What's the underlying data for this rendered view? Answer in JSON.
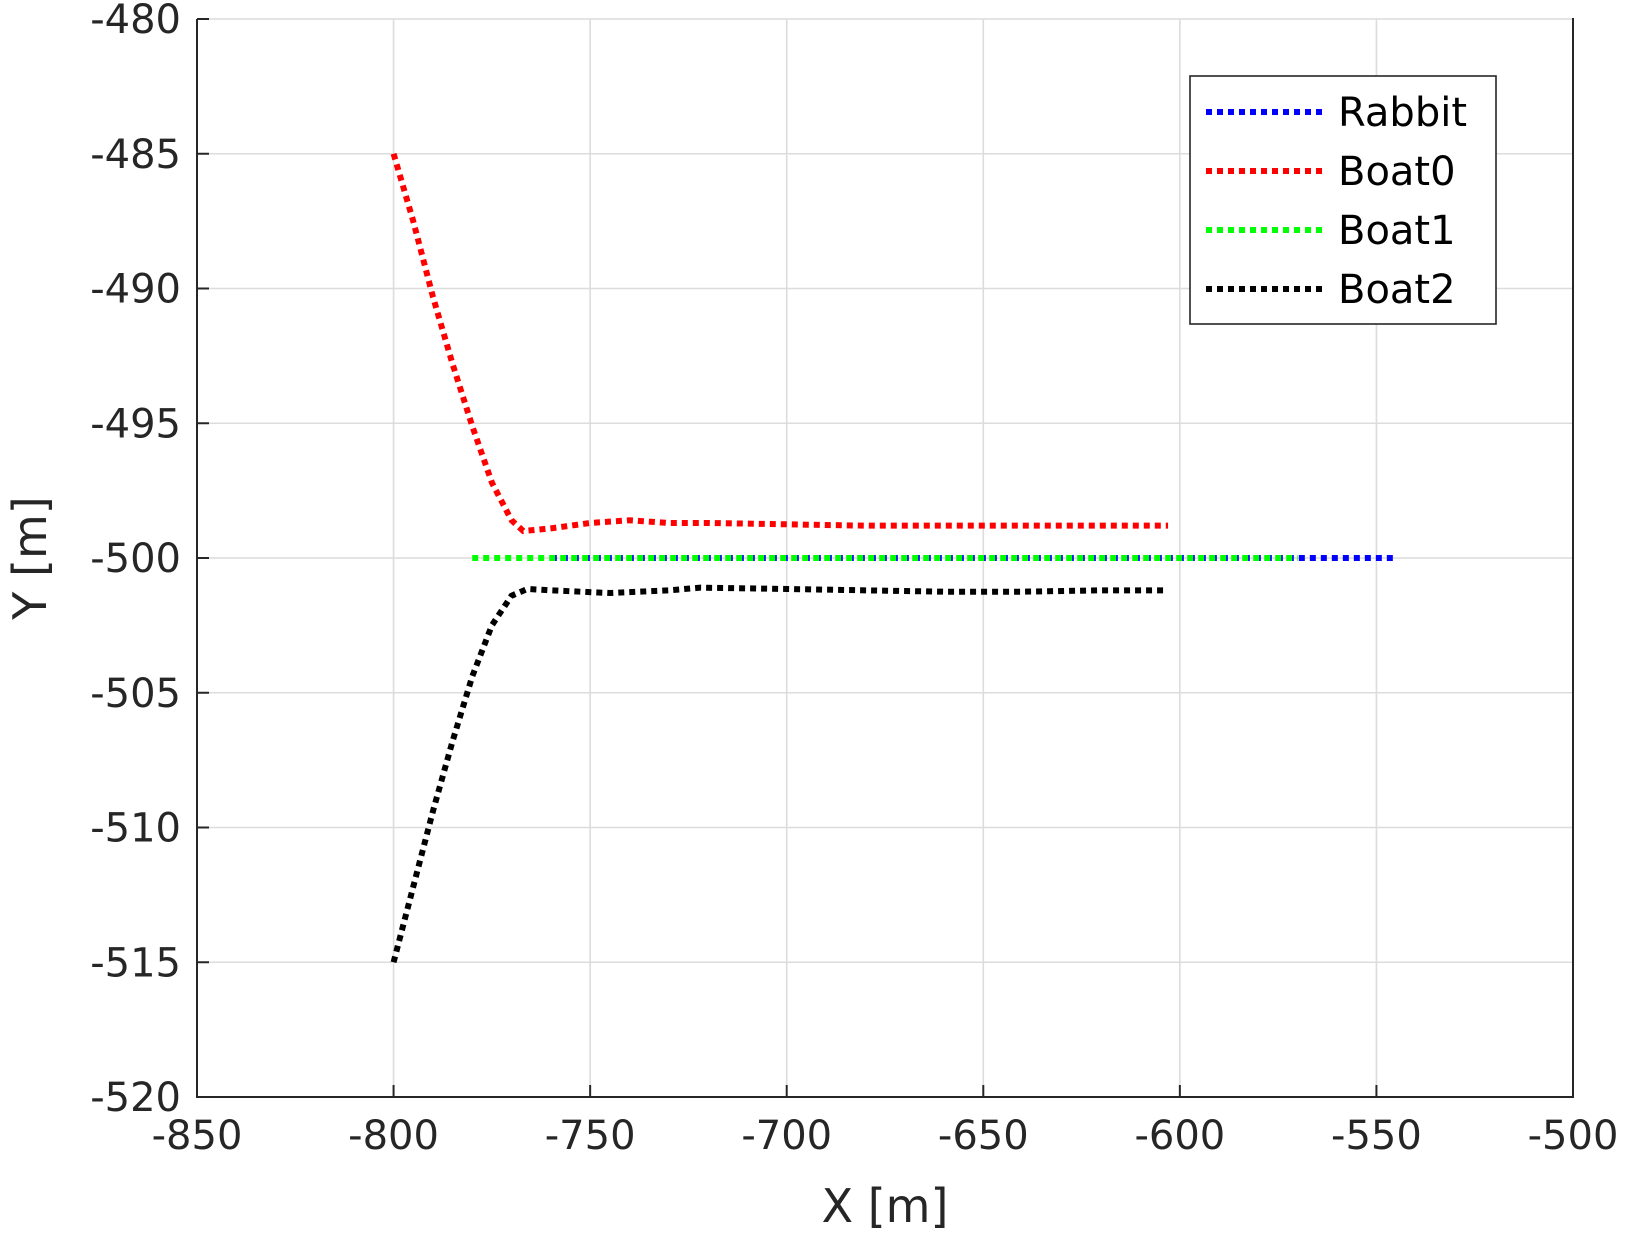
{
  "chart_data": {
    "type": "line",
    "title": "",
    "xlabel": "X [m]",
    "ylabel": "Y [m]",
    "xlim": [
      -850,
      -500
    ],
    "ylim": [
      -520,
      -480
    ],
    "xticks": [
      -850,
      -800,
      -750,
      -700,
      -650,
      -600,
      -550,
      -500
    ],
    "yticks": [
      -520,
      -515,
      -510,
      -505,
      -500,
      -495,
      -490,
      -485,
      -480
    ],
    "x_tick_labels": [
      "-850",
      "-800",
      "-750",
      "-700",
      "-650",
      "-600",
      "-550",
      "-500"
    ],
    "y_tick_labels": [
      "-520",
      "-515",
      "-510",
      "-505",
      "-500",
      "-495",
      "-490",
      "-485",
      "-480"
    ],
    "grid": true,
    "legend_position": "top-right",
    "line_style": "dotted",
    "series": [
      {
        "name": "Rabbit",
        "color": "#0000ff",
        "x": [
          -760,
          -545
        ],
        "y": [
          -500,
          -500
        ]
      },
      {
        "name": "Boat0",
        "color": "#ff0000",
        "x": [
          -800,
          -795,
          -790,
          -785,
          -780,
          -775,
          -770,
          -767,
          -760,
          -750,
          -740,
          -730,
          -720,
          -700,
          -680,
          -660,
          -640,
          -620,
          -603
        ],
        "y": [
          -485,
          -487.5,
          -490.3,
          -492.8,
          -495.1,
          -497.2,
          -498.6,
          -499.0,
          -498.9,
          -498.7,
          -498.6,
          -498.7,
          -498.7,
          -498.75,
          -498.8,
          -498.8,
          -498.8,
          -498.8,
          -498.8
        ]
      },
      {
        "name": "Boat1",
        "color": "#00ff00",
        "x": [
          -780,
          -740,
          -700,
          -660,
          -620,
          -580,
          -570
        ],
        "y": [
          -500,
          -500,
          -500,
          -500,
          -500,
          -500,
          -500
        ]
      },
      {
        "name": "Boat2",
        "color": "#000000",
        "x": [
          -800,
          -795,
          -790,
          -785,
          -780,
          -775,
          -770,
          -766,
          -760,
          -745,
          -730,
          -722,
          -700,
          -680,
          -660,
          -640,
          -620,
          -603
        ],
        "y": [
          -515,
          -512.2,
          -509.4,
          -506.8,
          -504.4,
          -502.5,
          -501.4,
          -501.15,
          -501.2,
          -501.3,
          -501.2,
          -501.1,
          -501.15,
          -501.2,
          -501.25,
          -501.25,
          -501.2,
          -501.2
        ]
      }
    ]
  }
}
